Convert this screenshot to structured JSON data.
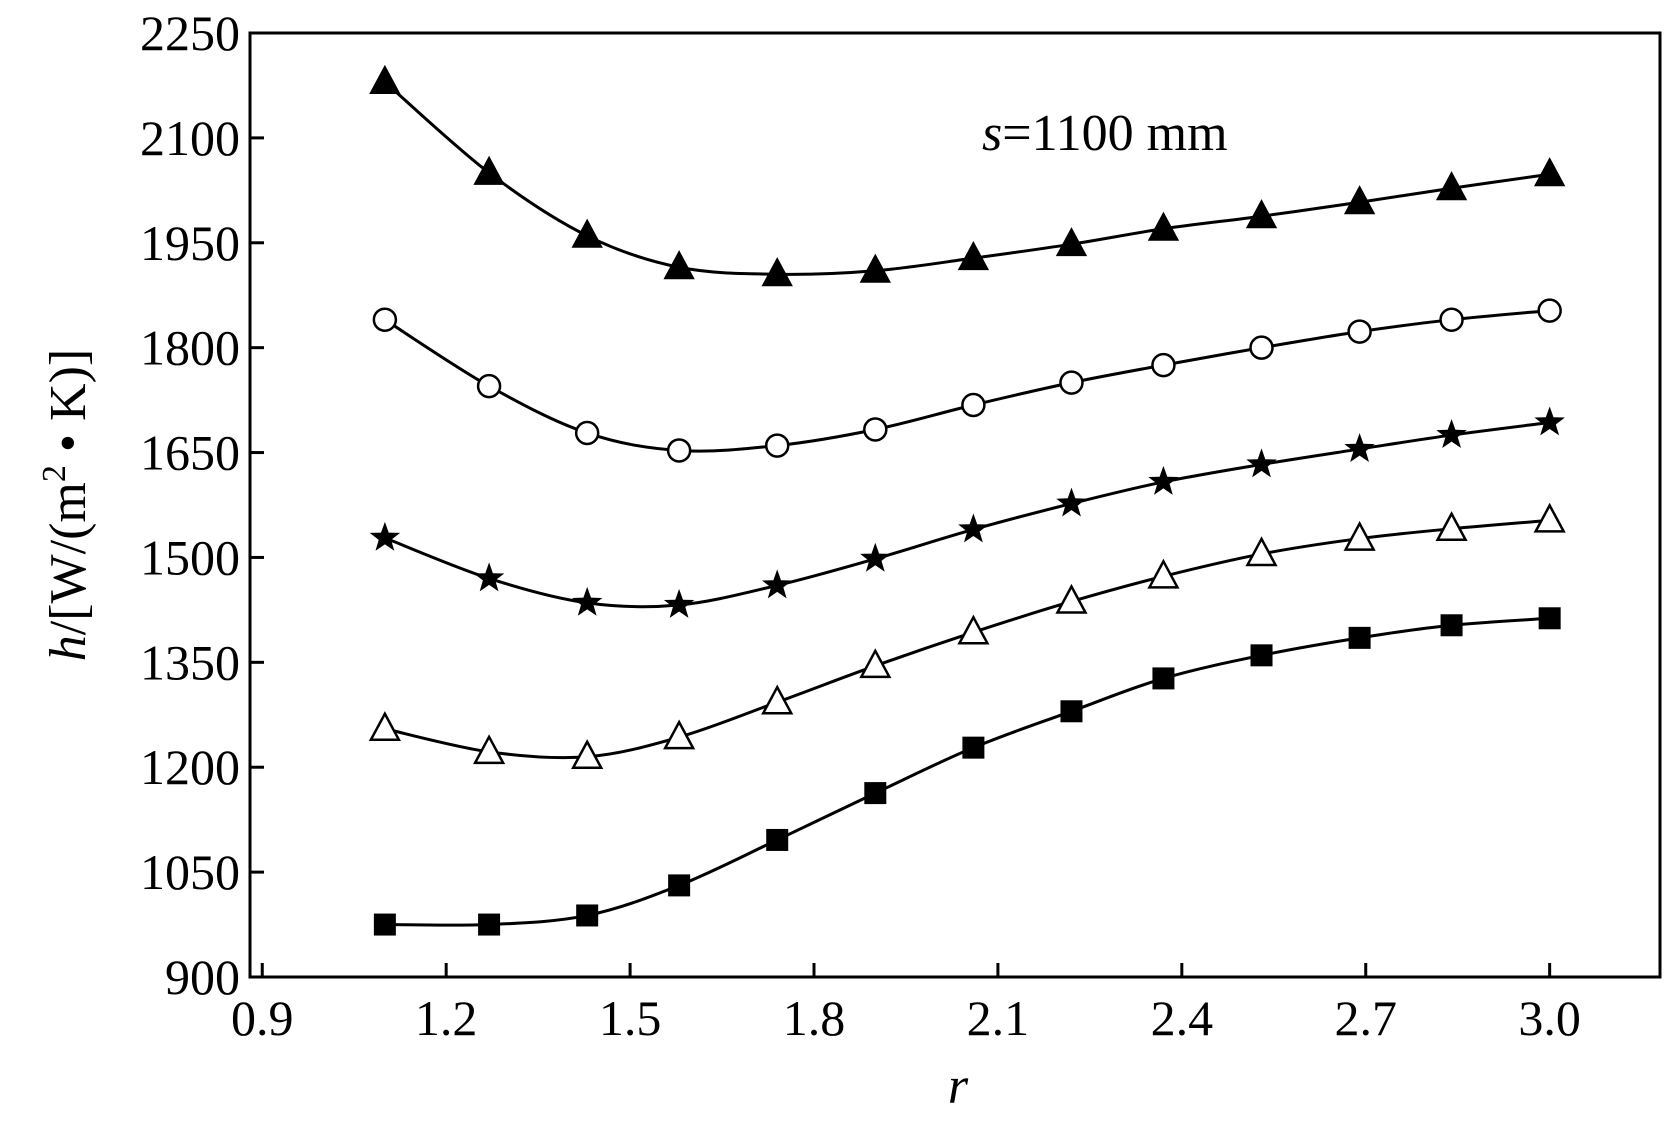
{
  "chart_data": {
    "type": "line",
    "annotation": {
      "prefix": "s",
      "text": "=1100 mm"
    },
    "xlabel": "r",
    "ylabel": {
      "italic": "h",
      "before_sup": "/[W/(m",
      "sup": "2",
      "after_sup": " • K)]"
    },
    "xlim": [
      0.88,
      3.18
    ],
    "ylim": [
      900,
      2250
    ],
    "xticks": [
      "0.9",
      "1.2",
      "1.5",
      "1.8",
      "2.1",
      "2.4",
      "2.7",
      "3.0"
    ],
    "yticks": [
      "900",
      "1050",
      "1200",
      "1350",
      "1500",
      "1650",
      "1800",
      "1950",
      "2100",
      "2250"
    ],
    "x": [
      1.1,
      1.27,
      1.43,
      1.58,
      1.74,
      1.9,
      2.06,
      2.22,
      2.37,
      2.53,
      2.69,
      2.84,
      3.0
    ],
    "series": [
      {
        "name": "series-filled-triangle",
        "marker": "triangle-filled",
        "values": [
          2180,
          2050,
          1960,
          1915,
          1905,
          1910,
          1928,
          1948,
          1970,
          1988,
          2008,
          2028,
          2048
        ]
      },
      {
        "name": "series-open-circle",
        "marker": "circle-open",
        "values": [
          1840,
          1745,
          1678,
          1653,
          1660,
          1683,
          1718,
          1750,
          1775,
          1800,
          1823,
          1840,
          1853
        ]
      },
      {
        "name": "series-filled-star",
        "marker": "star-filled",
        "values": [
          1528,
          1470,
          1435,
          1432,
          1460,
          1498,
          1540,
          1577,
          1608,
          1633,
          1655,
          1675,
          1693
        ]
      },
      {
        "name": "series-open-triangle",
        "marker": "triangle-open",
        "values": [
          1255,
          1222,
          1215,
          1243,
          1293,
          1345,
          1393,
          1437,
          1473,
          1505,
          1527,
          1541,
          1553
        ]
      },
      {
        "name": "series-filled-square",
        "marker": "square-filled",
        "values": [
          975,
          975,
          988,
          1031,
          1096,
          1163,
          1228,
          1280,
          1327,
          1360,
          1385,
          1403,
          1413
        ]
      }
    ]
  }
}
